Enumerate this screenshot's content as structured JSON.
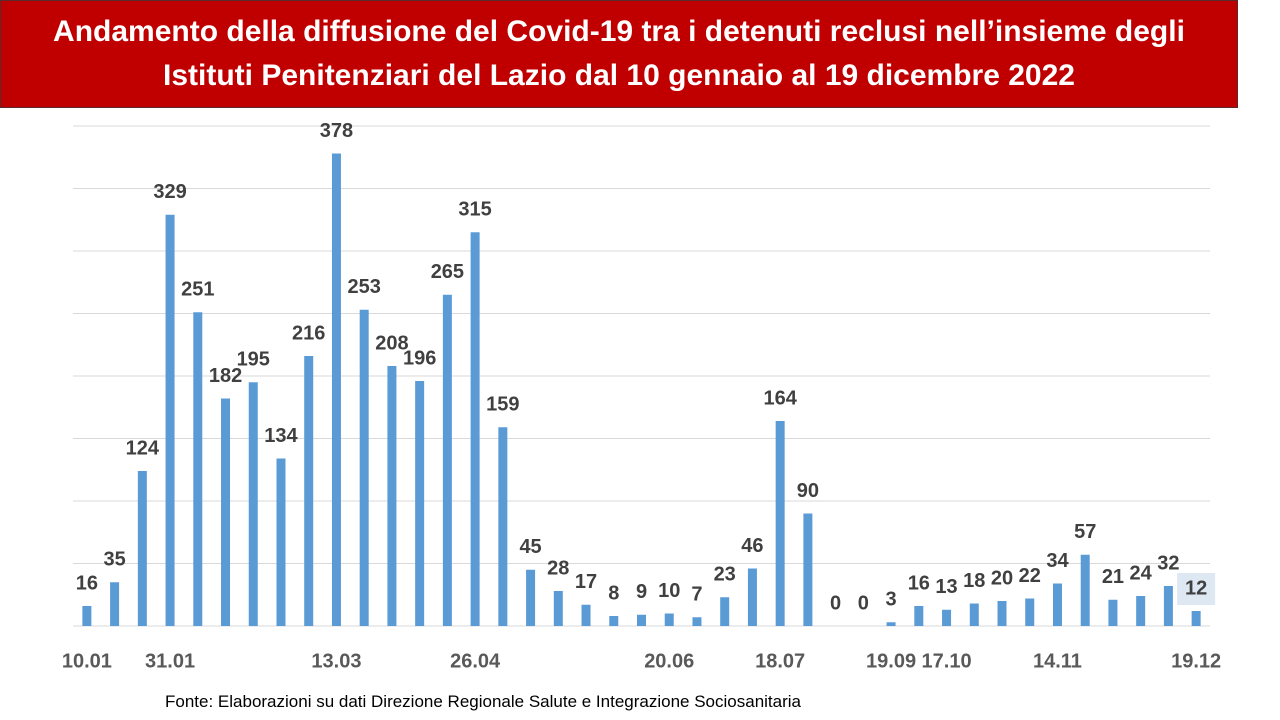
{
  "chart_data": {
    "type": "bar",
    "title": "Andamento della diffusione del Covid-19 tra i detenuti reclusi nell’insieme degli Istituti Penitenziari del Lazio dal 10 gennaio al 19 dicembre 2022",
    "categories": [
      "10.01",
      null,
      null,
      "31.01",
      null,
      null,
      null,
      null,
      null,
      "13.03",
      null,
      null,
      null,
      null,
      "26.04",
      null,
      null,
      null,
      null,
      null,
      null,
      "20.06",
      null,
      null,
      null,
      "18.07",
      null,
      null,
      null,
      "19.09",
      null,
      "17.10",
      null,
      null,
      null,
      "14.11",
      null,
      null,
      null,
      null,
      "19.12"
    ],
    "values": [
      16,
      35,
      124,
      329,
      251,
      182,
      195,
      134,
      216,
      378,
      253,
      208,
      196,
      265,
      315,
      159,
      45,
      28,
      17,
      8,
      9,
      10,
      7,
      23,
      46,
      164,
      90,
      0,
      0,
      3,
      16,
      13,
      18,
      20,
      22,
      34,
      57,
      21,
      24,
      32,
      12
    ],
    "color": "#5b9bd5",
    "ylim": [
      0,
      400
    ],
    "yticks": [
      0,
      50,
      100,
      150,
      200,
      250,
      300,
      350,
      400
    ],
    "grid": true,
    "source": "Fonte: Elaborazioni su dati Direzione Regionale Salute e Integrazione Sociosanitaria"
  }
}
